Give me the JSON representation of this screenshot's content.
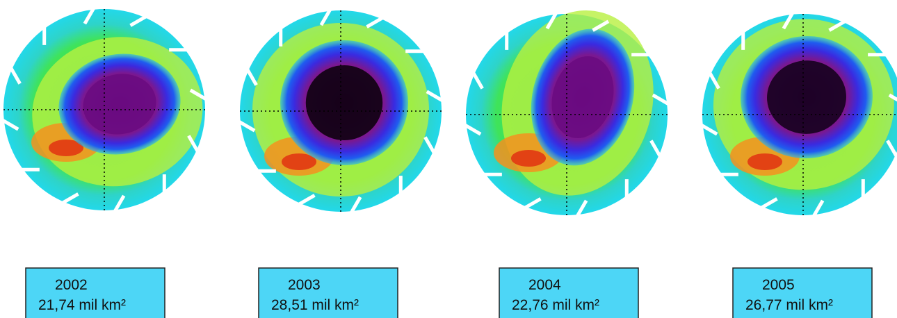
{
  "panels": [
    {
      "year": "2002",
      "area": "21,74 mil km²"
    },
    {
      "year": "2003",
      "area": "28,51 mil km²"
    },
    {
      "year": "2004",
      "area": "22,76 mil km²"
    },
    {
      "year": "2005",
      "area": "26,77 mil km²"
    }
  ]
}
